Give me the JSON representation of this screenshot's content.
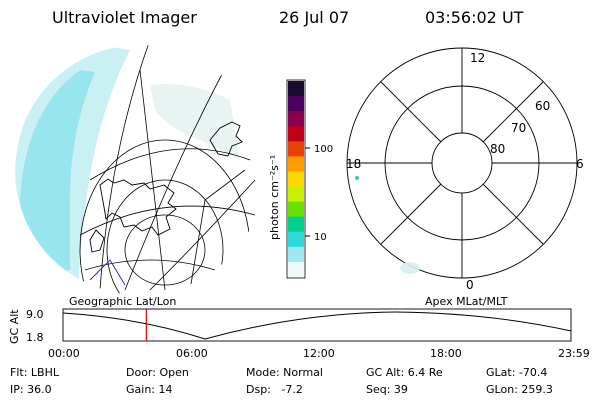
{
  "header": {
    "title": "Ultraviolet Imager",
    "date": "26 Jul 07",
    "time": "03:56:02 UT"
  },
  "colorbar": {
    "unit_label": "photon cm⁻²s⁻¹",
    "tick_labels": [
      "100",
      "10"
    ],
    "scale": "log",
    "colors": [
      "#1a0a2e",
      "#4b0060",
      "#8a0050",
      "#c0001a",
      "#e8400a",
      "#ff9c00",
      "#ffd800",
      "#c8f000",
      "#6ae000",
      "#00d090",
      "#30d8d8",
      "#a0e8f0",
      "#f0f8fa"
    ]
  },
  "left_panel": {
    "label": "Geographic Lat/Lon"
  },
  "right_panel": {
    "label": "Apex MLat/MLT",
    "ring_labels": [
      "60",
      "70",
      "80"
    ],
    "clock_labels": [
      "12",
      "18",
      "6",
      "0"
    ]
  },
  "altitude_plot": {
    "ylabel": "GC Alt",
    "y_ticks": [
      "9.0",
      "1.8"
    ],
    "x_ticks": [
      "00:00",
      "06:00",
      "12:00",
      "18:00",
      "23:59"
    ],
    "marker_time": "03:56",
    "marker_color": "#e00000"
  },
  "info": {
    "row1": [
      "Flt: LBHL",
      "Door: Open",
      "Mode: Normal",
      "GC Alt: 6.4 Re",
      "GLat: -70.4"
    ],
    "row2": [
      "IP: 36.0",
      "Gain: 14",
      "Dsp:   -7.2",
      "Seq: 39",
      "GLon: 259.3"
    ]
  }
}
